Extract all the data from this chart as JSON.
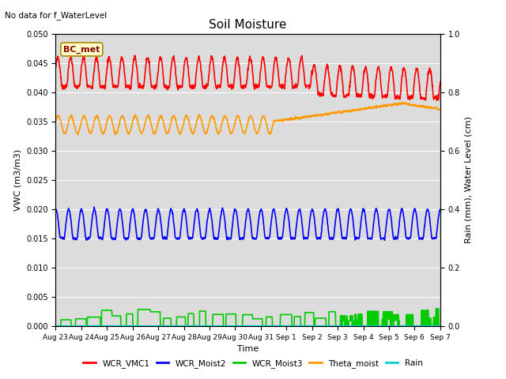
{
  "title": "Soil Moisture",
  "top_left_text": "No data for f_WaterLevel",
  "box_label": "BC_met",
  "ylabel_left": "VWC (m3/m3)",
  "ylabel_right": "Rain (mm), Water Level (cm)",
  "xlabel": "Time",
  "ylim_left": [
    0.0,
    0.05
  ],
  "ylim_right": [
    0.0,
    1.0
  ],
  "yticks_left": [
    0.0,
    0.005,
    0.01,
    0.015,
    0.02,
    0.025,
    0.03,
    0.035,
    0.04,
    0.045,
    0.05
  ],
  "yticks_right": [
    0.0,
    0.2,
    0.4,
    0.6,
    0.8,
    1.0
  ],
  "bg_color": "#dcdcdc",
  "legend": [
    {
      "label": "WCR_VMC1",
      "color": "#ff0000",
      "lw": 1.2
    },
    {
      "label": "WCR_Moist2",
      "color": "#0000ff",
      "lw": 1.2
    },
    {
      "label": "WCR_Moist3",
      "color": "#00cc00",
      "lw": 1.2
    },
    {
      "label": "Theta_moist",
      "color": "#ff9900",
      "lw": 1.2
    },
    {
      "label": "Rain",
      "color": "#00cccc",
      "lw": 1.2
    }
  ]
}
